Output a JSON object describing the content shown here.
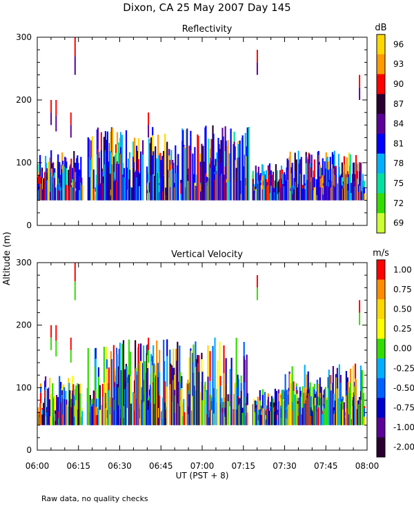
{
  "figure": {
    "title": "Dixon, CA 25 May 2007  Day 145",
    "ylabel": "Altitude (m)",
    "xlabel": "UT  (PST + 8)",
    "footnote": "Raw data, no quality checks"
  },
  "time_axis": {
    "range_hours": [
      6.0,
      8.0
    ],
    "tick_hours": [
      6.0,
      6.25,
      6.5,
      6.75,
      7.0,
      7.25,
      7.5,
      7.75,
      8.0
    ],
    "tick_labels": [
      "06:00",
      "06:15",
      "06:30",
      "06:45",
      "07:00",
      "07:15",
      "07:30",
      "07:45",
      "08:00"
    ]
  },
  "chart_data": [
    {
      "type": "heatmap",
      "title": "Reflectivity",
      "colorbar_unit": "dB",
      "colorbar_labels": [
        "96",
        "93",
        "90",
        "87",
        "84",
        "81",
        "78",
        "75",
        "72",
        "69"
      ],
      "colorbar_colors": [
        "#ffd700",
        "#ff9a00",
        "#ff0000",
        "#2a0030",
        "#5c0099",
        "#0000ff",
        "#00b0ff",
        "#00e0a0",
        "#33dd00",
        "#ccff33"
      ],
      "xlim_hours": [
        6.0,
        8.0
      ],
      "ylim_m": [
        0,
        300
      ],
      "yticks": [
        0,
        100,
        200,
        300
      ],
      "bands": [
        {
          "t0": 6.0,
          "t1": 6.27,
          "lo": 40,
          "hi": 120
        },
        {
          "t0": 6.3,
          "t1": 7.28,
          "lo": 40,
          "hi": 160
        },
        {
          "t0": 7.3,
          "t1": 7.5,
          "lo": 40,
          "hi": 100
        },
        {
          "t0": 7.5,
          "t1": 7.98,
          "lo": 40,
          "hi": 120
        }
      ],
      "spikes": [
        {
          "t": 6.08,
          "lo": 160,
          "hi": 200
        },
        {
          "t": 6.11,
          "lo": 150,
          "hi": 200
        },
        {
          "t": 6.2,
          "lo": 140,
          "hi": 180
        },
        {
          "t": 6.225,
          "lo": 240,
          "hi": 300
        },
        {
          "t": 6.67,
          "lo": 140,
          "hi": 180
        },
        {
          "t": 7.33,
          "lo": 240,
          "hi": 280
        },
        {
          "t": 7.95,
          "lo": 200,
          "hi": 240
        }
      ]
    },
    {
      "type": "heatmap",
      "title": "Vertical Velocity",
      "colorbar_unit": "m/s",
      "colorbar_labels": [
        "1.00",
        "0.75",
        "0.50",
        "0.25",
        "0.00",
        "-0.25",
        "-0.50",
        "-0.75",
        "-1.00",
        "-2.00"
      ],
      "colorbar_colors": [
        "#ff0000",
        "#ff8c00",
        "#ffd700",
        "#ffff00",
        "#33dd00",
        "#00b0ff",
        "#0060ff",
        "#0000cc",
        "#5c0099",
        "#2a0030"
      ],
      "xlim_hours": [
        6.0,
        8.0
      ],
      "ylim_m": [
        0,
        300
      ],
      "yticks": [
        0,
        100,
        200,
        300
      ],
      "bands": [
        {
          "t0": 6.0,
          "t1": 6.27,
          "lo": 40,
          "hi": 120
        },
        {
          "t0": 6.3,
          "t1": 7.28,
          "lo": 40,
          "hi": 180
        },
        {
          "t0": 7.3,
          "t1": 7.5,
          "lo": 40,
          "hi": 100
        },
        {
          "t0": 7.5,
          "t1": 7.98,
          "lo": 40,
          "hi": 140
        }
      ],
      "spikes": [
        {
          "t": 6.08,
          "lo": 160,
          "hi": 200
        },
        {
          "t": 6.11,
          "lo": 150,
          "hi": 200
        },
        {
          "t": 6.2,
          "lo": 140,
          "hi": 180
        },
        {
          "t": 6.225,
          "lo": 240,
          "hi": 300
        },
        {
          "t": 6.67,
          "lo": 140,
          "hi": 180
        },
        {
          "t": 7.33,
          "lo": 240,
          "hi": 280
        },
        {
          "t": 7.95,
          "lo": 200,
          "hi": 240
        }
      ]
    }
  ]
}
